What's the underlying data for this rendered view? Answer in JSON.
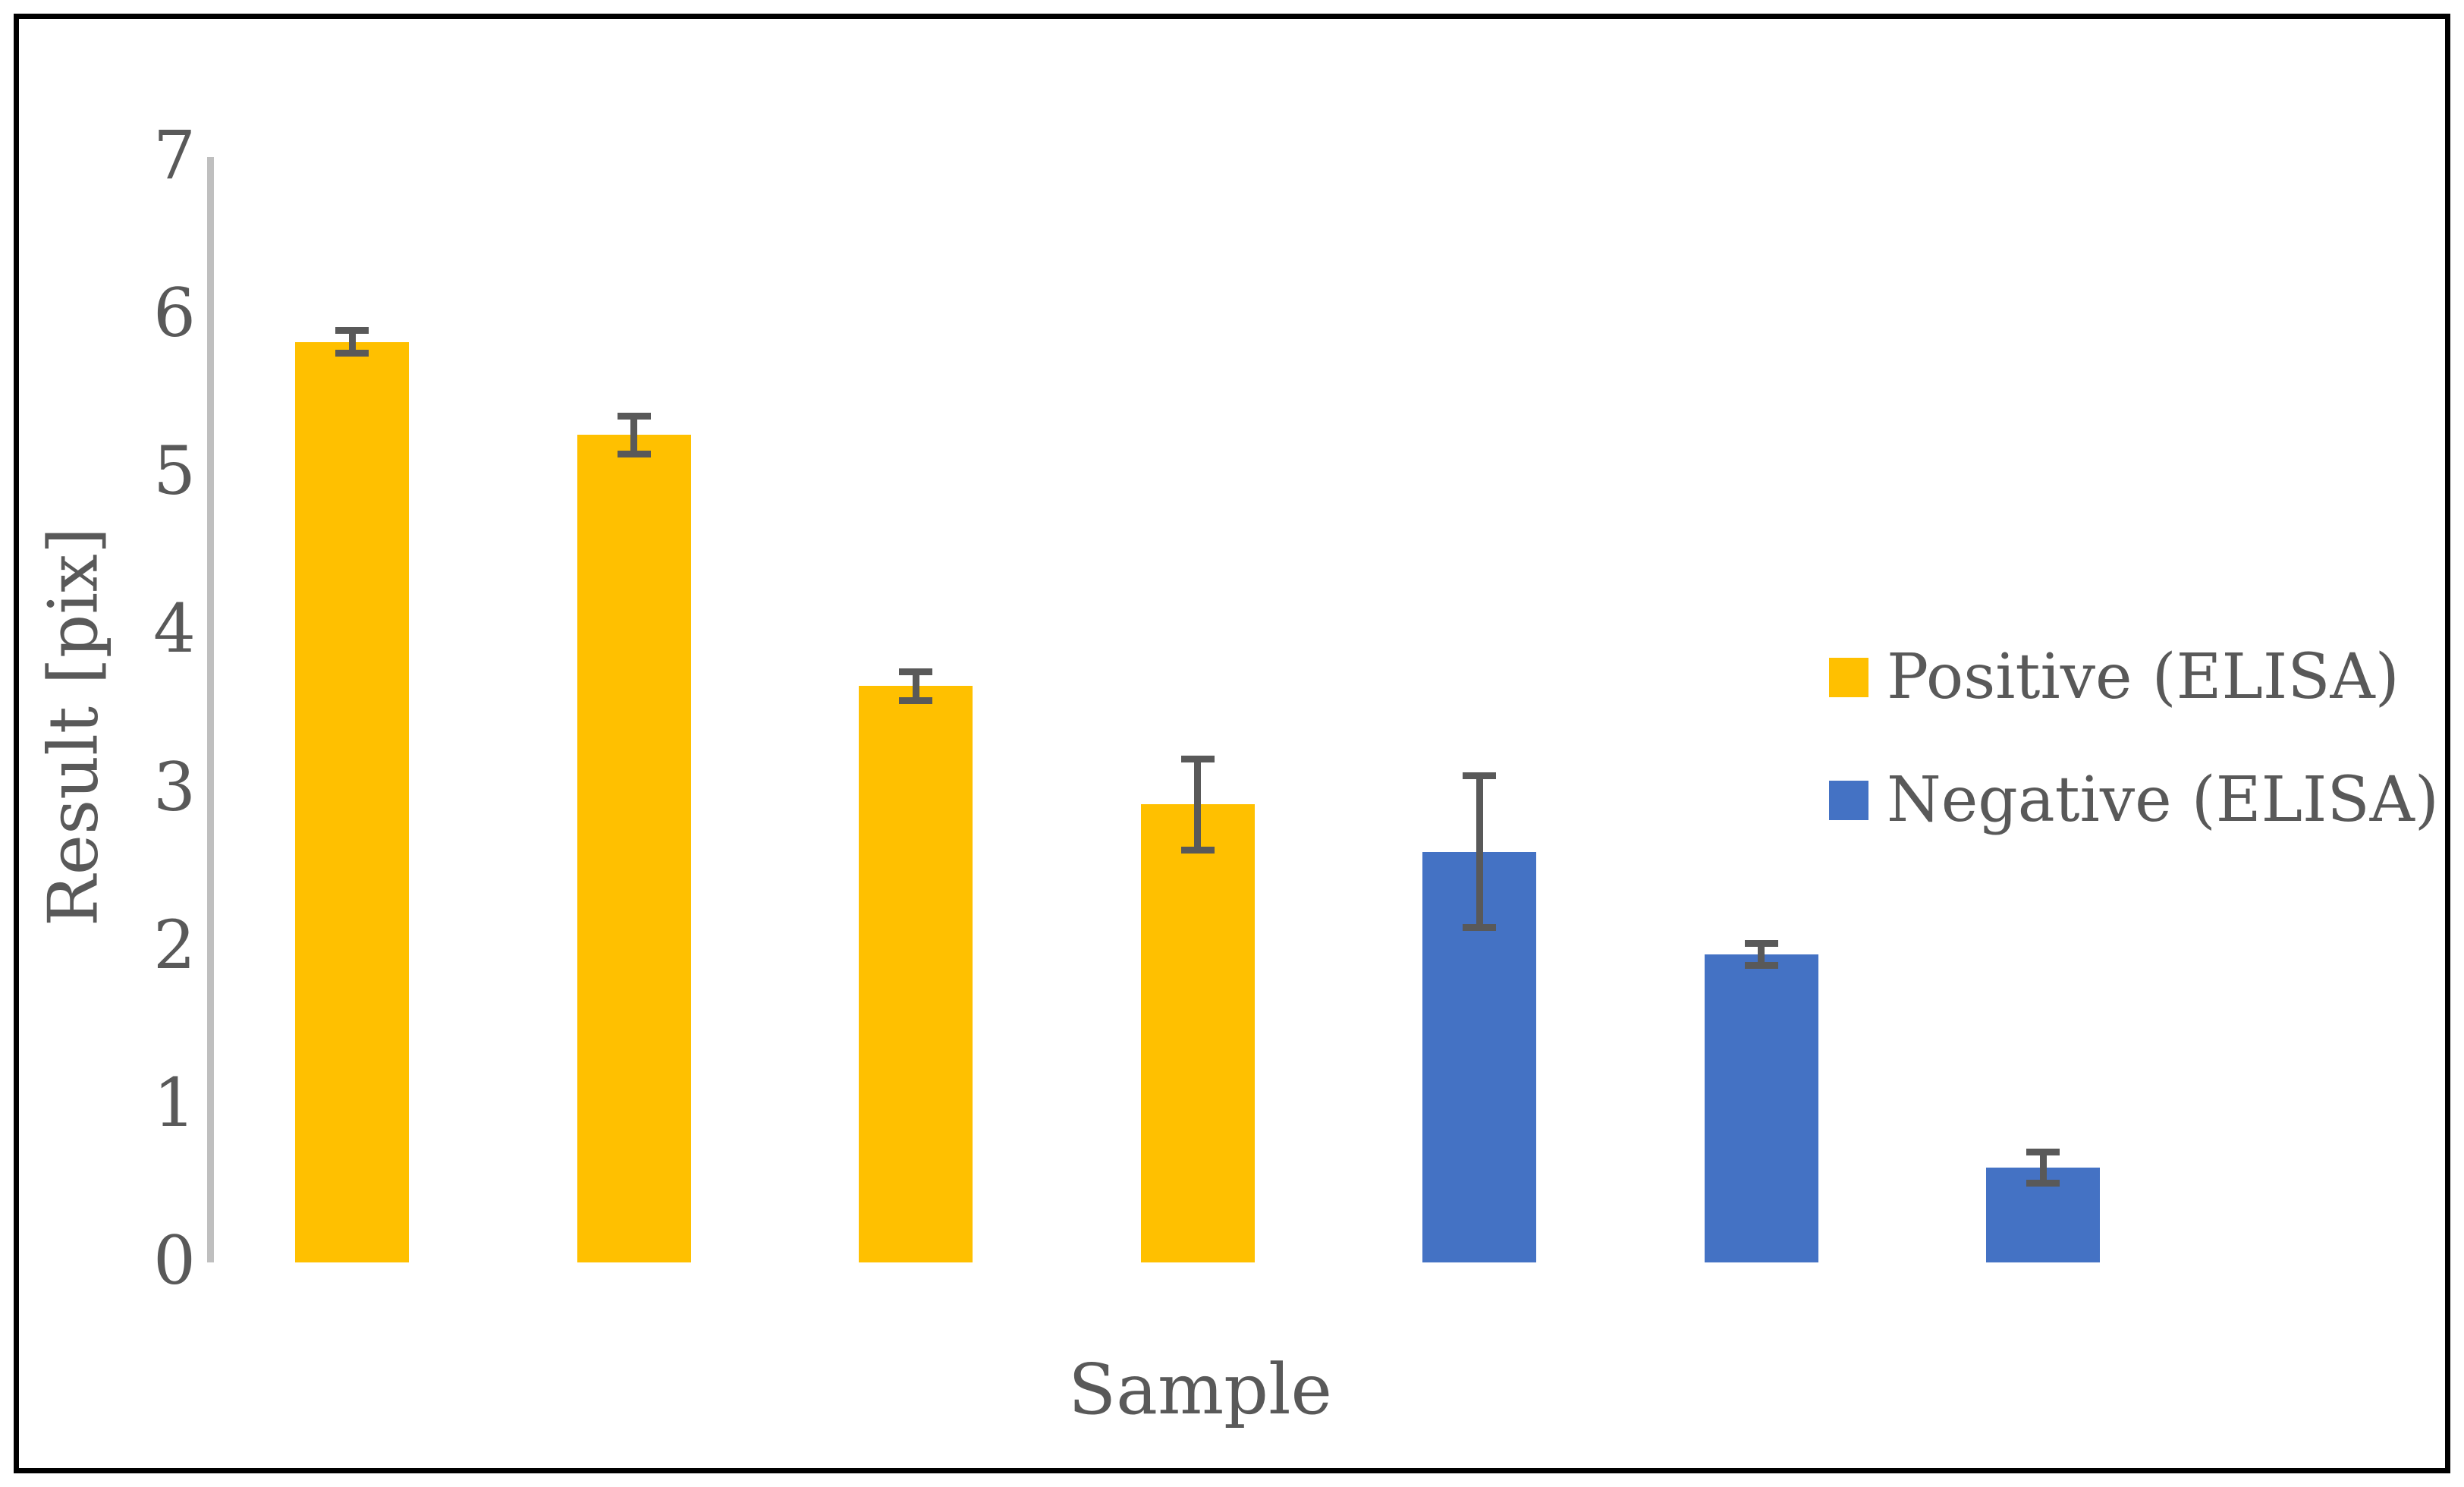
{
  "figure": {
    "background": "#FFFFFF",
    "border_color": "#000000"
  },
  "chart_data": {
    "type": "bar",
    "title": "",
    "xlabel": "Sample",
    "ylabel": "Result [pix]",
    "ylim": [
      0,
      7
    ],
    "yticks": [
      0,
      1,
      2,
      3,
      4,
      5,
      6,
      7
    ],
    "x_tick_labels": [],
    "grid": false,
    "legend": {
      "position": "right",
      "entries": [
        {
          "label": "Positive (ELISA)",
          "color": "#FFC000"
        },
        {
          "label": "Negative (ELISA)",
          "color": "#4472C4"
        }
      ]
    },
    "bars": [
      {
        "sample": 1,
        "series": "Positive (ELISA)",
        "value": 5.83,
        "error": 0.07,
        "color": "#FFC000"
      },
      {
        "sample": 2,
        "series": "Positive (ELISA)",
        "value": 5.24,
        "error": 0.12,
        "color": "#FFC000"
      },
      {
        "sample": 3,
        "series": "Positive (ELISA)",
        "value": 3.65,
        "error": 0.09,
        "color": "#FFC000"
      },
      {
        "sample": 4,
        "series": "Positive (ELISA)",
        "value": 2.9,
        "error": 0.29,
        "color": "#FFC000"
      },
      {
        "sample": 5,
        "series": "Negative (ELISA)",
        "value": 2.6,
        "error": 0.48,
        "color": "#4472C4"
      },
      {
        "sample": 6,
        "series": "Negative (ELISA)",
        "value": 1.95,
        "error": 0.07,
        "color": "#4472C4"
      },
      {
        "sample": 7,
        "series": "Negative (ELISA)",
        "value": 0.6,
        "error": 0.1,
        "color": "#4472C4"
      }
    ],
    "colors": {
      "axis_line": "#BFBFBF",
      "text": "#595959",
      "error_bar": "#595959"
    }
  }
}
